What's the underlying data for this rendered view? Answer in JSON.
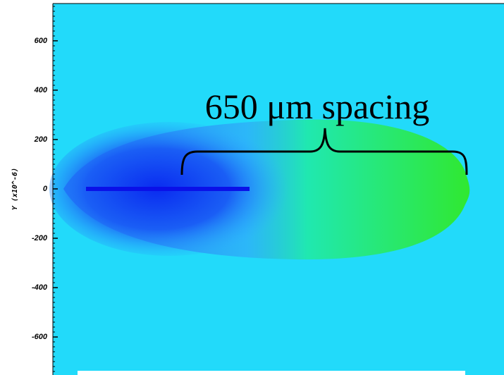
{
  "chart_data": {
    "type": "image",
    "ylabel": "Y (x10^-6)",
    "annotation": "650 μm spacing",
    "ylim": [
      -754,
      751
    ],
    "yticks": [
      -600,
      -400,
      -200,
      0,
      200,
      400,
      600
    ]
  }
}
